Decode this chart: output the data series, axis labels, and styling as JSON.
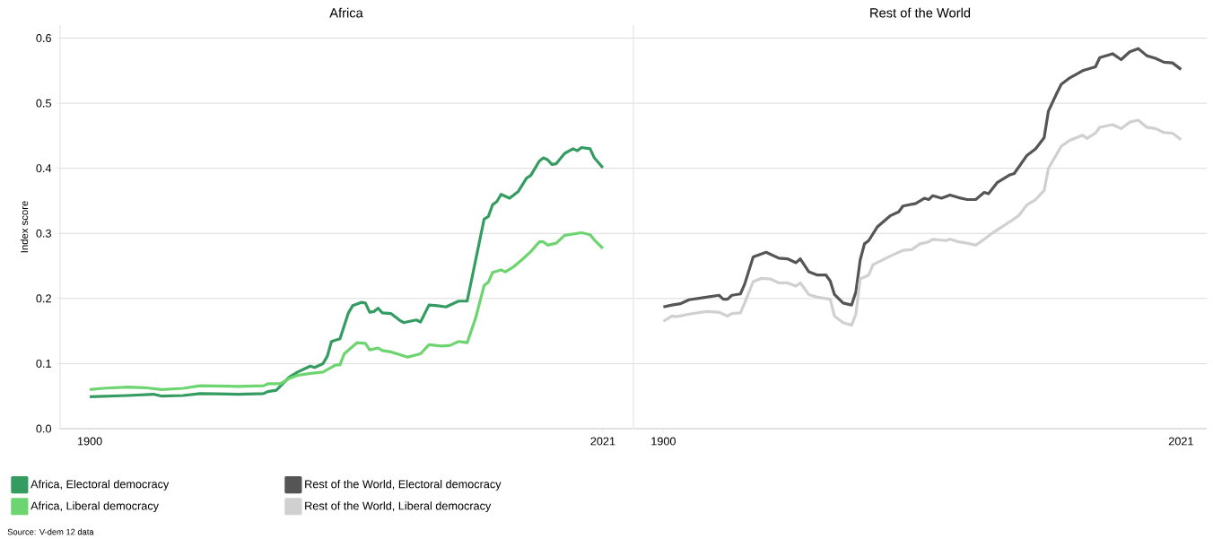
{
  "chart_data": [
    {
      "type": "line",
      "title": "Africa",
      "ylabel": "Index score",
      "xlim": [
        1893,
        2028
      ],
      "xticks": [
        1900,
        2021
      ],
      "ylim": [
        0,
        0.62
      ],
      "yticks": [
        {
          "value": 0,
          "label": "0.0"
        },
        0.1,
        0.2,
        0.3,
        0.4,
        0.5,
        0.6
      ],
      "grid": "y",
      "legend": "bottom",
      "marker": "none",
      "line_style": "solid",
      "annotations": [
        "Source: V-dem 12 data"
      ],
      "series": [
        {
          "name": "Africa, Electoral democracy",
          "color": "#349c61",
          "x": [
            1900,
            1909,
            1915,
            1917,
            1922,
            1926,
            1935,
            1941,
            1942,
            1944,
            1947,
            1949,
            1952,
            1953,
            1955,
            1956,
            1957,
            1959,
            1961,
            1962,
            1964,
            1965,
            1966,
            1967,
            1968,
            1969,
            1971,
            1973,
            1974,
            1977,
            1978,
            1980,
            1982,
            1984,
            1987,
            1989,
            1993,
            1994,
            1995,
            1996,
            1997,
            1999,
            2001,
            2003,
            2004,
            2006,
            2007,
            2008,
            2009,
            2010,
            2012,
            2014,
            2015,
            2016,
            2018,
            2019,
            2021
          ],
          "values": [
            0.049,
            0.051,
            0.053,
            0.05,
            0.051,
            0.054,
            0.053,
            0.054,
            0.057,
            0.059,
            0.079,
            0.087,
            0.096,
            0.094,
            0.1,
            0.111,
            0.134,
            0.138,
            0.178,
            0.189,
            0.194,
            0.193,
            0.179,
            0.18,
            0.185,
            0.178,
            0.177,
            0.167,
            0.163,
            0.167,
            0.164,
            0.19,
            0.189,
            0.187,
            0.196,
            0.196,
            0.322,
            0.326,
            0.344,
            0.349,
            0.36,
            0.354,
            0.364,
            0.385,
            0.389,
            0.411,
            0.416,
            0.413,
            0.406,
            0.407,
            0.423,
            0.43,
            0.427,
            0.432,
            0.43,
            0.416,
            0.401
          ]
        },
        {
          "name": "Africa, Liberal democracy",
          "color": "#6dd56f",
          "x": [
            1900,
            1903,
            1909,
            1913,
            1917,
            1922,
            1926,
            1935,
            1941,
            1942,
            1945,
            1947,
            1949,
            1952,
            1955,
            1958,
            1959,
            1960,
            1963,
            1965,
            1966,
            1968,
            1969,
            1971,
            1973,
            1975,
            1978,
            1980,
            1983,
            1985,
            1987,
            1989,
            1991,
            1993,
            1994,
            1995,
            1997,
            1998,
            2000,
            2002,
            2004,
            2006,
            2007,
            2008,
            2010,
            2012,
            2014,
            2016,
            2018,
            2019,
            2021
          ],
          "values": [
            0.06,
            0.062,
            0.064,
            0.063,
            0.06,
            0.062,
            0.066,
            0.065,
            0.066,
            0.069,
            0.069,
            0.077,
            0.082,
            0.085,
            0.087,
            0.098,
            0.098,
            0.115,
            0.132,
            0.131,
            0.121,
            0.124,
            0.12,
            0.118,
            0.114,
            0.11,
            0.115,
            0.129,
            0.127,
            0.128,
            0.134,
            0.132,
            0.17,
            0.22,
            0.225,
            0.24,
            0.244,
            0.241,
            0.249,
            0.26,
            0.272,
            0.287,
            0.287,
            0.282,
            0.285,
            0.297,
            0.299,
            0.301,
            0.298,
            0.29,
            0.277
          ]
        }
      ]
    },
    {
      "type": "line",
      "title": "Rest of the World",
      "xlim": [
        1893,
        2027
      ],
      "xticks": [
        1900,
        2021
      ],
      "ylim": [
        0,
        0.62
      ],
      "yticks": [
        0,
        0.1,
        0.2,
        0.3,
        0.4,
        0.5,
        0.6
      ],
      "tick_labels": "x",
      "grid": "y",
      "legend": "bottom",
      "marker": "none",
      "line_style": "solid",
      "series": [
        {
          "name": "Rest of the World, Electoral democracy",
          "color": "#555555",
          "x": [
            1900,
            1902,
            1904,
            1906,
            1909,
            1913,
            1914,
            1915,
            1916,
            1918,
            1919,
            1921,
            1924,
            1927,
            1929,
            1931,
            1932,
            1934,
            1936,
            1938,
            1939,
            1940,
            1942,
            1944,
            1945,
            1946,
            1947,
            1948,
            1950,
            1953,
            1955,
            1956,
            1959,
            1961,
            1962,
            1963,
            1965,
            1967,
            1969,
            1971,
            1973,
            1975,
            1976,
            1978,
            1981,
            1982,
            1985,
            1987,
            1989,
            1990,
            1992,
            1993,
            1995,
            1998,
            2001,
            2002,
            2005,
            2007,
            2009,
            2011,
            2013,
            2015,
            2017,
            2019,
            2021
          ],
          "values": [
            0.187,
            0.19,
            0.192,
            0.198,
            0.201,
            0.205,
            0.199,
            0.199,
            0.205,
            0.207,
            0.222,
            0.264,
            0.271,
            0.262,
            0.261,
            0.255,
            0.261,
            0.241,
            0.236,
            0.236,
            0.227,
            0.206,
            0.193,
            0.19,
            0.21,
            0.259,
            0.284,
            0.289,
            0.31,
            0.327,
            0.333,
            0.342,
            0.346,
            0.354,
            0.352,
            0.358,
            0.354,
            0.359,
            0.355,
            0.352,
            0.352,
            0.363,
            0.361,
            0.378,
            0.39,
            0.392,
            0.42,
            0.43,
            0.447,
            0.488,
            0.516,
            0.529,
            0.539,
            0.55,
            0.556,
            0.57,
            0.576,
            0.567,
            0.579,
            0.584,
            0.573,
            0.569,
            0.563,
            0.562,
            0.552
          ]
        },
        {
          "name": "Rest of the World, Liberal democracy",
          "color": "#d0d0d0",
          "x": [
            1900,
            1902,
            1903,
            1906,
            1910,
            1913,
            1915,
            1916,
            1918,
            1919,
            1921,
            1923,
            1925,
            1927,
            1929,
            1931,
            1932,
            1934,
            1936,
            1939,
            1940,
            1942,
            1944,
            1945,
            1946,
            1948,
            1949,
            1953,
            1956,
            1958,
            1960,
            1962,
            1963,
            1966,
            1967,
            1969,
            1971,
            1973,
            1975,
            1977,
            1981,
            1983,
            1985,
            1987,
            1989,
            1990,
            1993,
            1995,
            1998,
            1999,
            2001,
            2002,
            2005,
            2007,
            2009,
            2011,
            2013,
            2015,
            2017,
            2019,
            2021
          ],
          "values": [
            0.165,
            0.173,
            0.172,
            0.176,
            0.18,
            0.179,
            0.173,
            0.177,
            0.178,
            0.193,
            0.226,
            0.231,
            0.23,
            0.224,
            0.224,
            0.219,
            0.224,
            0.206,
            0.202,
            0.199,
            0.173,
            0.163,
            0.159,
            0.176,
            0.23,
            0.236,
            0.252,
            0.265,
            0.274,
            0.275,
            0.284,
            0.287,
            0.291,
            0.289,
            0.291,
            0.287,
            0.285,
            0.282,
            0.291,
            0.301,
            0.318,
            0.327,
            0.344,
            0.352,
            0.366,
            0.4,
            0.434,
            0.443,
            0.451,
            0.446,
            0.454,
            0.463,
            0.467,
            0.461,
            0.471,
            0.474,
            0.463,
            0.461,
            0.455,
            0.454,
            0.444
          ]
        }
      ]
    }
  ]
}
